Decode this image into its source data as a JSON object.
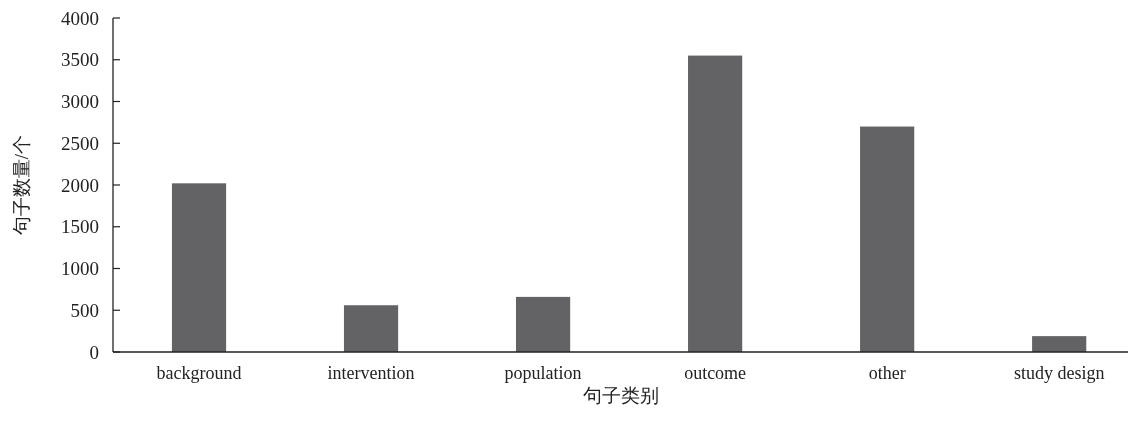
{
  "chart_data": {
    "type": "bar",
    "xlabel": "句子类别",
    "ylabel": "句子数量/个",
    "categories": [
      "background",
      "intervention",
      "population",
      "outcome",
      "other",
      "study design"
    ],
    "values": [
      2020,
      560,
      660,
      3550,
      2700,
      190
    ],
    "color": "#636365",
    "ylim": [
      0,
      4000
    ],
    "yticks": [
      0,
      500,
      1000,
      1500,
      2000,
      2500,
      3000,
      3500,
      4000
    ]
  }
}
